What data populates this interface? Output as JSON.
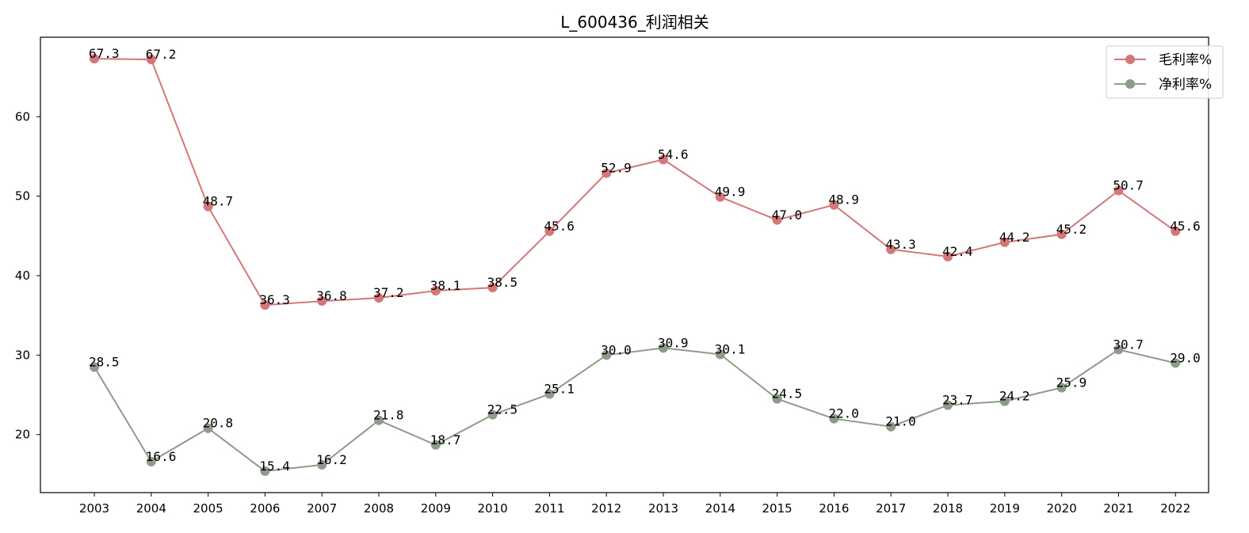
{
  "chart_data": {
    "type": "line",
    "title": "L_600436_利润相关",
    "xlabel": "",
    "ylabel": "",
    "x": [
      "2003",
      "2004",
      "2005",
      "2006",
      "2007",
      "2008",
      "2009",
      "2010",
      "2011",
      "2012",
      "2013",
      "2014",
      "2015",
      "2016",
      "2017",
      "2018",
      "2019",
      "2020",
      "2021",
      "2022"
    ],
    "ylim": [
      12.7,
      70
    ],
    "yticks": [
      20,
      30,
      40,
      50,
      60
    ],
    "grid": false,
    "legend_position": "top-right",
    "series": [
      {
        "name": "毛利率%",
        "color": "#d4777a",
        "marker": "circle",
        "values": [
          67.3,
          67.2,
          48.7,
          36.3,
          36.8,
          37.2,
          38.1,
          38.5,
          45.6,
          52.9,
          54.6,
          49.9,
          47.0,
          48.9,
          43.3,
          42.4,
          44.2,
          45.2,
          50.7,
          45.6
        ],
        "labels": [
          "67.3",
          "67.2",
          "48.7",
          "36.3",
          "36.8",
          "37.2",
          "38.1",
          "38.5",
          "45.6",
          "52.9",
          "54.6",
          "49.9",
          "47.0",
          "48.9",
          "43.3",
          "42.4",
          "44.2",
          "45.2",
          "50.7",
          "45.6"
        ]
      },
      {
        "name": "净利率%",
        "color": "#8c9c88",
        "marker": "circle",
        "values": [
          28.5,
          16.6,
          20.8,
          15.4,
          16.2,
          21.8,
          18.7,
          22.5,
          25.1,
          30.0,
          30.9,
          30.1,
          24.5,
          22.0,
          21.0,
          23.7,
          24.2,
          25.9,
          30.7,
          29.0
        ],
        "labels": [
          "28.5",
          "16.6",
          "20.8",
          "15.4",
          "16.2",
          "21.8",
          "18.7",
          "22.5",
          "25.1",
          "30.0",
          "30.9",
          "30.1",
          "24.5",
          "22.0",
          "21.0",
          "23.7",
          "24.2",
          "25.9",
          "30.7",
          "29.0"
        ]
      }
    ]
  }
}
